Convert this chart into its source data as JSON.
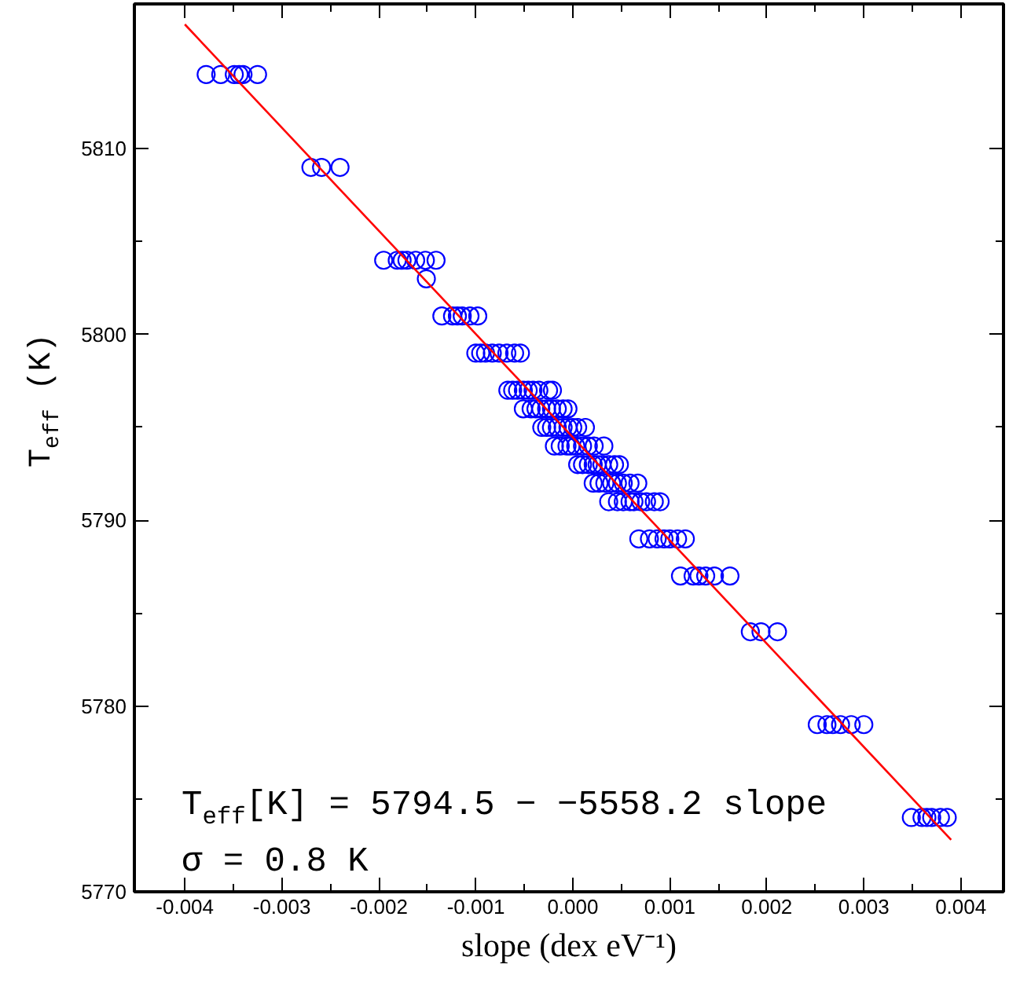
{
  "chart_data": {
    "type": "scatter",
    "xlabel": "slope (dex eV⁻¹)",
    "ylabel": "T$_{eff}$ (K)",
    "xlim": [
      -0.00452,
      0.00444
    ],
    "ylim": [
      5770,
      5817.8
    ],
    "xticks": [
      -0.004,
      -0.003,
      -0.002,
      -0.001,
      {
        "value": 0,
        "label": "0.000"
      },
      0.001,
      0.002,
      0.003,
      0.004
    ],
    "yticks": [
      5770,
      5780,
      5790,
      5800,
      5810
    ],
    "grid": false,
    "marker": "circle",
    "annotations": [
      "T$_{eff}$[K] = 5794.5 − −5558.2 slope",
      "σ = 0.8 K"
    ],
    "series": [
      {
        "color": "#0000ff",
        "x": [
          -0.00378,
          -0.00363,
          -0.00349,
          -0.00344,
          -0.0034,
          -0.00325,
          -0.0027,
          -0.00259,
          -0.0024,
          -0.00195,
          -0.00181,
          -0.00176,
          -0.00171,
          -0.00162,
          -0.00152,
          -0.00141,
          -0.00151,
          -0.00135,
          -0.00124,
          -0.00119,
          -0.00114,
          -0.00106,
          -0.00098,
          -0.001,
          -0.00095,
          -0.0009,
          -0.00083,
          -0.00076,
          -0.00068,
          -0.0006,
          -0.00054,
          -0.00067,
          -0.00062,
          -0.00057,
          -0.00051,
          -0.00046,
          -0.00041,
          -0.00035,
          -0.00025,
          -0.00021,
          -0.00051,
          -0.00043,
          -0.00038,
          -0.00033,
          -0.00027,
          -0.00022,
          -0.00016,
          -0.0001,
          -5e-05,
          -0.00032,
          -0.00027,
          -0.00022,
          -0.00016,
          -0.0001,
          -5e-05,
          0.0,
          5e-05,
          0.00013,
          -0.00019,
          -0.00013,
          -6e-05,
          -2e-05,
          3e-05,
          0.0001,
          0.00016,
          0.00022,
          0.00032,
          5e-05,
          0.0001,
          0.00016,
          0.00021,
          0.00025,
          0.0003,
          0.00037,
          0.00043,
          0.00048,
          0.00021,
          0.00027,
          0.00033,
          0.0004,
          0.00046,
          0.00052,
          0.00059,
          0.00067,
          0.00037,
          0.00046,
          0.00052,
          0.00059,
          0.00063,
          0.0007,
          0.00076,
          0.00084,
          0.0009,
          0.00068,
          0.00079,
          0.00087,
          0.00094,
          0.001,
          0.00108,
          0.00116,
          0.00111,
          0.00124,
          0.0013,
          0.00137,
          0.00146,
          0.00162,
          0.00183,
          0.00194,
          0.00211,
          0.00252,
          0.00262,
          0.00268,
          0.00276,
          0.00287,
          0.003,
          0.00349,
          0.0036,
          0.00365,
          0.0037,
          0.00379,
          0.00386
        ],
        "values": [
          5814,
          5814,
          5814,
          5814,
          5814,
          5814,
          5809,
          5809,
          5809,
          5804,
          5804,
          5804,
          5804,
          5804,
          5804,
          5804,
          5803,
          5801,
          5801,
          5801,
          5801,
          5801,
          5801,
          5799,
          5799,
          5799,
          5799,
          5799,
          5799,
          5799,
          5799,
          5797,
          5797,
          5797,
          5797,
          5797,
          5797,
          5797,
          5797,
          5797,
          5796,
          5796,
          5796,
          5796,
          5796,
          5796,
          5796,
          5796,
          5796,
          5795,
          5795,
          5795,
          5795,
          5795,
          5795,
          5795,
          5795,
          5795,
          5794,
          5794,
          5794,
          5794,
          5794,
          5794,
          5794,
          5794,
          5794,
          5793,
          5793,
          5793,
          5793,
          5793,
          5793,
          5793,
          5793,
          5793,
          5792,
          5792,
          5792,
          5792,
          5792,
          5792,
          5792,
          5792,
          5791,
          5791,
          5791,
          5791,
          5791,
          5791,
          5791,
          5791,
          5791,
          5789,
          5789,
          5789,
          5789,
          5789,
          5789,
          5789,
          5787,
          5787,
          5787,
          5787,
          5787,
          5787,
          5784,
          5784,
          5784,
          5779,
          5779,
          5779,
          5779,
          5779,
          5779,
          5774,
          5774,
          5774,
          5774,
          5774,
          5774
        ]
      },
      {
        "type": "line",
        "color": "#ff0000",
        "marker": "none",
        "x": [
          -0.004,
          0.0039
        ],
        "values": [
          5816.7,
          5772.8
        ]
      }
    ]
  }
}
